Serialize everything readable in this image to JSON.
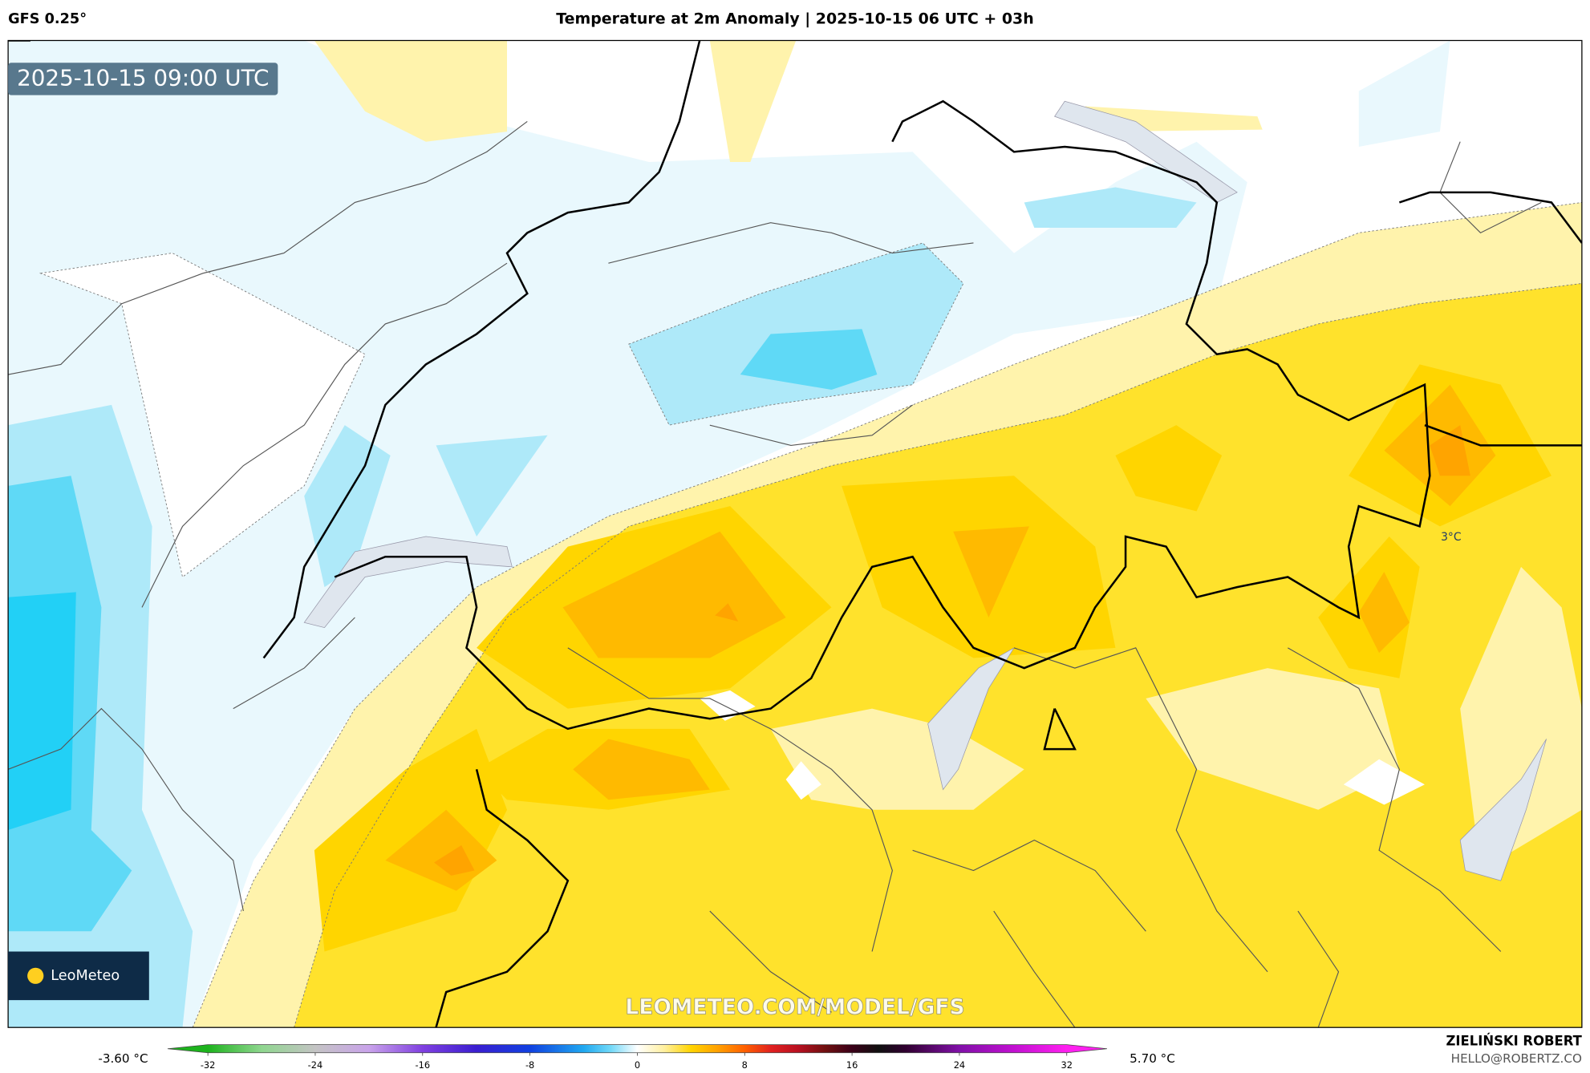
{
  "header": {
    "model": "GFS 0.25°",
    "title": "Temperature at 2m Anomaly | 2025-10-15 06 UTC + 03h",
    "valid_time": "2025-10-15 09:00 UTC"
  },
  "map": {
    "watermark": "LEOMETEO.COM/MODEL/GFS",
    "logo": "LeoMeteo",
    "annotations": [
      "3°C"
    ]
  },
  "legend": {
    "min_label": "-3.60 °C",
    "max_label": "5.70 °C",
    "lim": [
      -35,
      35
    ],
    "ticks": [
      -32,
      -24,
      -16,
      -8,
      0,
      8,
      16,
      24,
      32
    ],
    "stops": [
      {
        "value": -32,
        "color": "#1db31d"
      },
      {
        "value": -28,
        "color": "#8fd68f"
      },
      {
        "value": -24,
        "color": "#c4c4c4"
      },
      {
        "value": -20,
        "color": "#c9a3ea"
      },
      {
        "value": -16,
        "color": "#8040e0"
      },
      {
        "value": -12,
        "color": "#3a1ed0"
      },
      {
        "value": -8,
        "color": "#1040e0"
      },
      {
        "value": -4,
        "color": "#20a8f0"
      },
      {
        "value": -2,
        "color": "#70d8f8"
      },
      {
        "value": 0,
        "color": "#ffffff"
      },
      {
        "value": 2,
        "color": "#fff0a0"
      },
      {
        "value": 4,
        "color": "#ffd400"
      },
      {
        "value": 6,
        "color": "#ffa000"
      },
      {
        "value": 8,
        "color": "#ff6000"
      },
      {
        "value": 10,
        "color": "#e02020"
      },
      {
        "value": 12,
        "color": "#b81020"
      },
      {
        "value": 14,
        "color": "#701010"
      },
      {
        "value": 16,
        "color": "#3a0018"
      },
      {
        "value": 18,
        "color": "#101010"
      },
      {
        "value": 20,
        "color": "#300030"
      },
      {
        "value": 24,
        "color": "#8010a8"
      },
      {
        "value": 28,
        "color": "#c010d0"
      },
      {
        "value": 32,
        "color": "#ff20f0"
      }
    ]
  },
  "footer": {
    "author": "ZIELIŃSKI ROBERT",
    "contact": "HELLO@ROBERTZ.CO"
  }
}
